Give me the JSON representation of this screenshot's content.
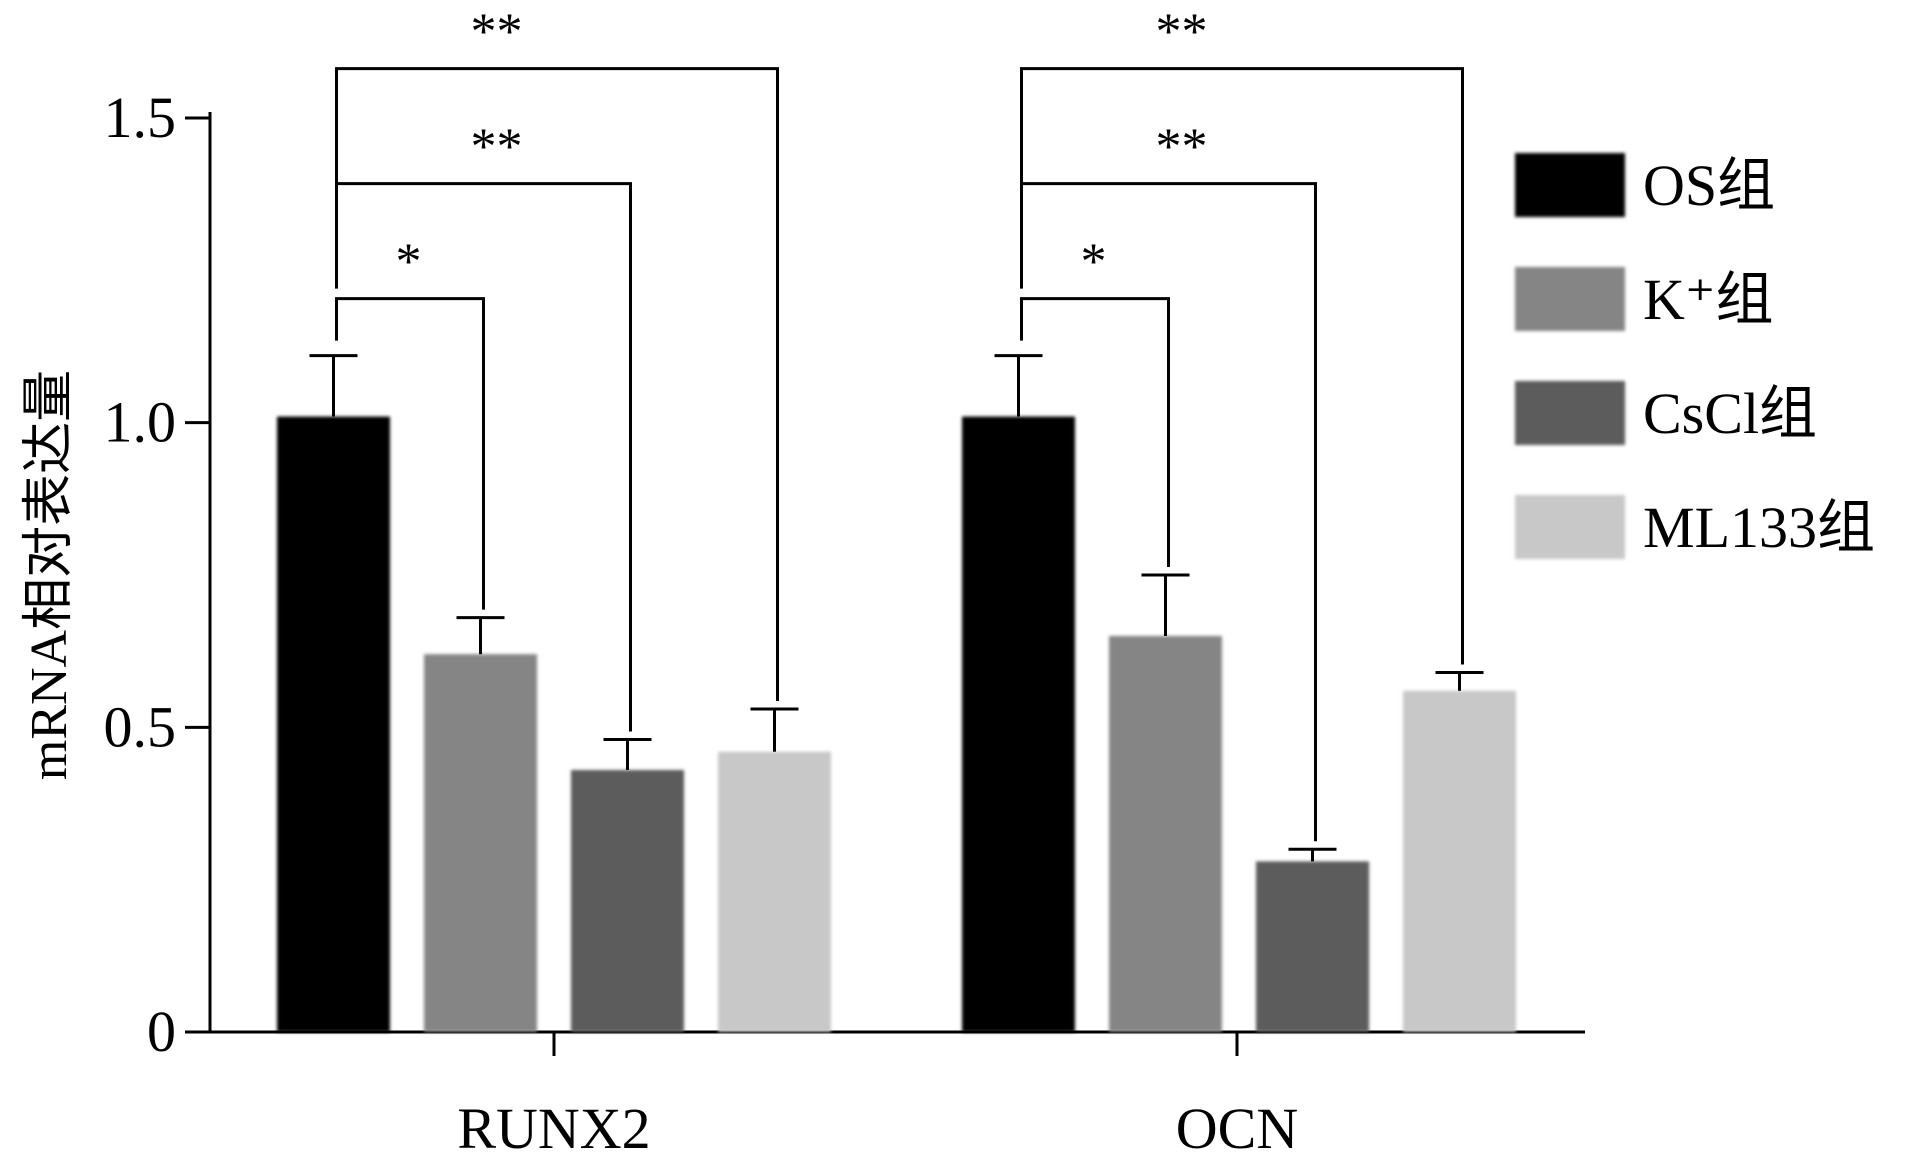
{
  "chart_data": {
    "type": "bar",
    "title": "",
    "xlabel": "",
    "ylabel": "mRNA相对表达量",
    "ylim": [
      0,
      1.5
    ],
    "yticks": [
      {
        "value": 0,
        "label": "0"
      },
      {
        "value": 0.5,
        "label": "0.5"
      },
      {
        "value": 1.0,
        "label": "1.0"
      },
      {
        "value": 1.5,
        "label": "1.5"
      }
    ],
    "categories": [
      "RUNX2",
      "OCN"
    ],
    "series": [
      {
        "name": "OS组",
        "color": "#000000",
        "values": [
          1.01,
          1.01
        ],
        "errors": [
          0.1,
          0.1
        ]
      },
      {
        "name": "K⁺组",
        "color": "#858585",
        "values": [
          0.62,
          0.65
        ],
        "errors": [
          0.06,
          0.1
        ]
      },
      {
        "name": "CsCl组",
        "color": "#5b5b5b",
        "values": [
          0.43,
          0.28
        ],
        "errors": [
          0.05,
          0.02
        ]
      },
      {
        "name": "ML133组",
        "color": "#c8c8c8",
        "values": [
          0.46,
          0.56
        ],
        "errors": [
          0.07,
          0.03
        ]
      }
    ],
    "legend": {
      "position": "right"
    },
    "grid": false,
    "significance": [
      {
        "category": 0,
        "from": 0,
        "to": 1,
        "label": "*"
      },
      {
        "category": 0,
        "from": 0,
        "to": 2,
        "label": "**"
      },
      {
        "category": 0,
        "from": 0,
        "to": 3,
        "label": "**"
      },
      {
        "category": 1,
        "from": 0,
        "to": 1,
        "label": "*"
      },
      {
        "category": 1,
        "from": 0,
        "to": 2,
        "label": "**"
      },
      {
        "category": 1,
        "from": 0,
        "to": 3,
        "label": "**"
      }
    ]
  }
}
